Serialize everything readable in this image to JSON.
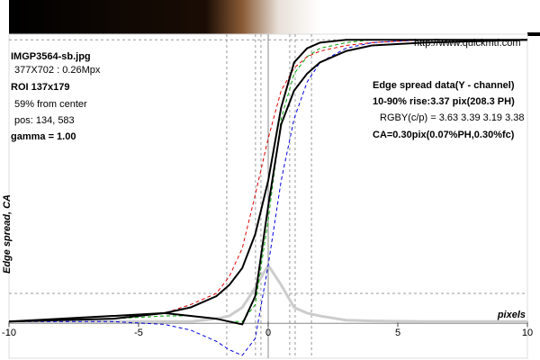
{
  "chart_data": {
    "type": "line",
    "x": [
      -10,
      -6,
      -4,
      -3,
      -2,
      -1.5,
      -1,
      -0.5,
      0,
      0.5,
      1,
      1.5,
      2,
      3,
      4,
      6,
      10
    ],
    "series": [
      {
        "color": "#000000",
        "style": "solid",
        "values": [
          0,
          0.01,
          0.03,
          0.05,
          0.09,
          0.13,
          0.19,
          0.31,
          0.5,
          0.76,
          0.92,
          0.97,
          0.99,
          1.0,
          1.0,
          1.0,
          1.0
        ]
      },
      {
        "color": "#000000",
        "style": "solid",
        "values": [
          0,
          0.02,
          0.03,
          0.02,
          0.01,
          0.0,
          -0.01,
          0.09,
          0.41,
          0.7,
          0.82,
          0.88,
          0.92,
          0.96,
          0.98,
          0.99,
          1.0
        ]
      },
      {
        "color": "#e00000",
        "style": "dashed",
        "values": [
          0,
          0.01,
          0.03,
          0.06,
          0.1,
          0.16,
          0.26,
          0.45,
          0.65,
          0.82,
          0.9,
          0.94,
          0.96,
          0.98,
          0.99,
          1.0,
          1.0
        ]
      },
      {
        "color": "#00a000",
        "style": "dashed",
        "values": [
          0,
          0.01,
          0.02,
          0.02,
          0.01,
          0.0,
          0.0,
          0.06,
          0.36,
          0.72,
          0.88,
          0.94,
          0.97,
          0.99,
          1.0,
          1.0,
          1.0
        ]
      },
      {
        "color": "#0000e0",
        "style": "dashed",
        "values": [
          0,
          0.0,
          -0.01,
          -0.03,
          -0.07,
          -0.1,
          -0.12,
          -0.06,
          0.2,
          0.5,
          0.72,
          0.85,
          0.92,
          0.97,
          0.99,
          1.0,
          1.0
        ]
      },
      {
        "color": "#cccccc",
        "style": "solid",
        "values": [
          0,
          0,
          0,
          0,
          0.01,
          0.02,
          0.05,
          0.12,
          0.2,
          0.13,
          0.05,
          0.03,
          0.02,
          0.005,
          0.002,
          0,
          0
        ]
      }
    ],
    "xlim": [
      -10,
      10
    ],
    "xticks": [
      -10,
      -5,
      0,
      5,
      10
    ],
    "ylim": [
      -0.13,
      1.02
    ],
    "vlines": [
      -1.6,
      -0.49,
      -0.28,
      0.83,
      1.04,
      1.67
    ],
    "hlines": [
      0.1,
      1.0
    ],
    "ylabel": "Edge spread, CA",
    "xlabel": "pixels",
    "annotations": [
      "IMGP3564-sb.jpg",
      "377X702 : 0.26Mpx",
      "ROI 137x179",
      "59% from center",
      "pos: 134, 583",
      "gamma = 1.00",
      "http://www.quickmtf.com",
      "Edge spread data(Y - channel)",
      "10-90% rise:3.37 pix(208.3 PH)",
      "RGBY(c/p) = 3.63 3.39 3.19 3.38",
      "CA=0.30pix(0.07%PH,0.30%fc)"
    ]
  }
}
